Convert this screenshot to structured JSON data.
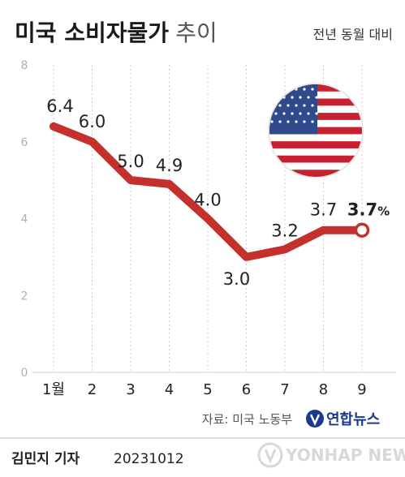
{
  "chart_data": {
    "type": "line",
    "title": "미국 소비자물가",
    "title_suffix": "추이",
    "subtitle": "전년 동월 대비",
    "categories": [
      "1월",
      "2",
      "3",
      "4",
      "5",
      "6",
      "7",
      "8",
      "9"
    ],
    "values": [
      6.4,
      6.0,
      5.0,
      4.9,
      4.0,
      3.0,
      3.2,
      3.7,
      3.7
    ],
    "data_labels": [
      "6.4",
      "6.0",
      "5.0",
      "4.9",
      "4.0",
      "3.0",
      "3.2",
      "3.7",
      "3.7"
    ],
    "last_label_unit": "%",
    "yticks": [
      "0",
      "2",
      "4",
      "6",
      "8"
    ],
    "ylim": [
      0,
      8
    ],
    "grid": "vertical-dotted",
    "line_color": "#c4302b"
  },
  "source": "자료: 미국 노동부",
  "brand": "연합뉴스",
  "author": "김민지 기자",
  "date": "20231012",
  "watermark": "YONHAP NEWS",
  "flag_icon": "us-flag-icon"
}
